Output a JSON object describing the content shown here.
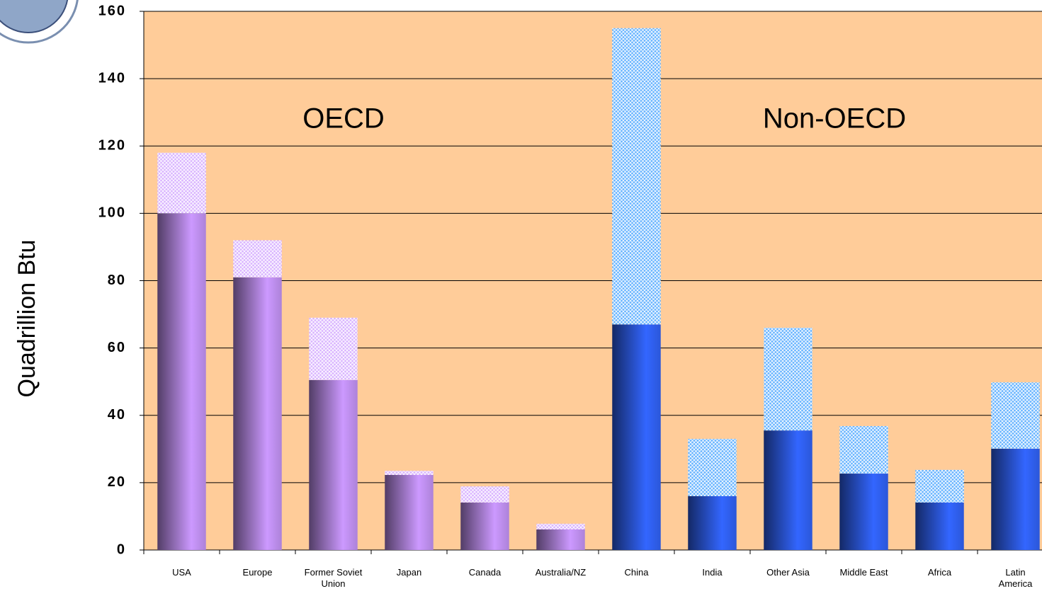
{
  "chart_data": {
    "type": "stacked-bar",
    "y_label": "Quadrillion Btu",
    "annotations": [
      "OECD",
      "Non-OECD"
    ],
    "categories": [
      "USA",
      "Europe",
      "Former Soviet Union",
      "Japan",
      "Canada",
      "Australia/NZ",
      "China",
      "India",
      "Other Asia",
      "Middle East",
      "Africa",
      "Latin America"
    ],
    "series": [
      {
        "pattern": "gradient",
        "colors": [
          "#cc99ff",
          "#cc99ff",
          "#cc99ff",
          "#cc99ff",
          "#cc99ff",
          "#cc99ff",
          "#3366ff",
          "#3366ff",
          "#3366ff",
          "#3366ff",
          "#3366ff",
          "#3366ff"
        ],
        "values": [
          100,
          81,
          50.5,
          22.3,
          14.1,
          6.1,
          67,
          16,
          35.5,
          22.7,
          14.1,
          30.1
        ]
      },
      {
        "pattern": "crosshatch",
        "colors": [
          "#cc99ff",
          "#cc99ff",
          "#cc99ff",
          "#cc99ff",
          "#cc99ff",
          "#cc99ff",
          "#3399ff",
          "#3399ff",
          "#3399ff",
          "#3399ff",
          "#3399ff",
          "#3399ff"
        ],
        "values": [
          18,
          11,
          18.5,
          1.2,
          4.8,
          1.7,
          88,
          17,
          30.5,
          14.1,
          9.7,
          19.7
        ]
      }
    ],
    "plot_background": "#ffcc99",
    "ylim": [
      0,
      160
    ],
    "yticks": [
      0,
      20,
      40,
      60,
      80,
      100,
      120,
      140,
      160
    ],
    "grid": true
  }
}
